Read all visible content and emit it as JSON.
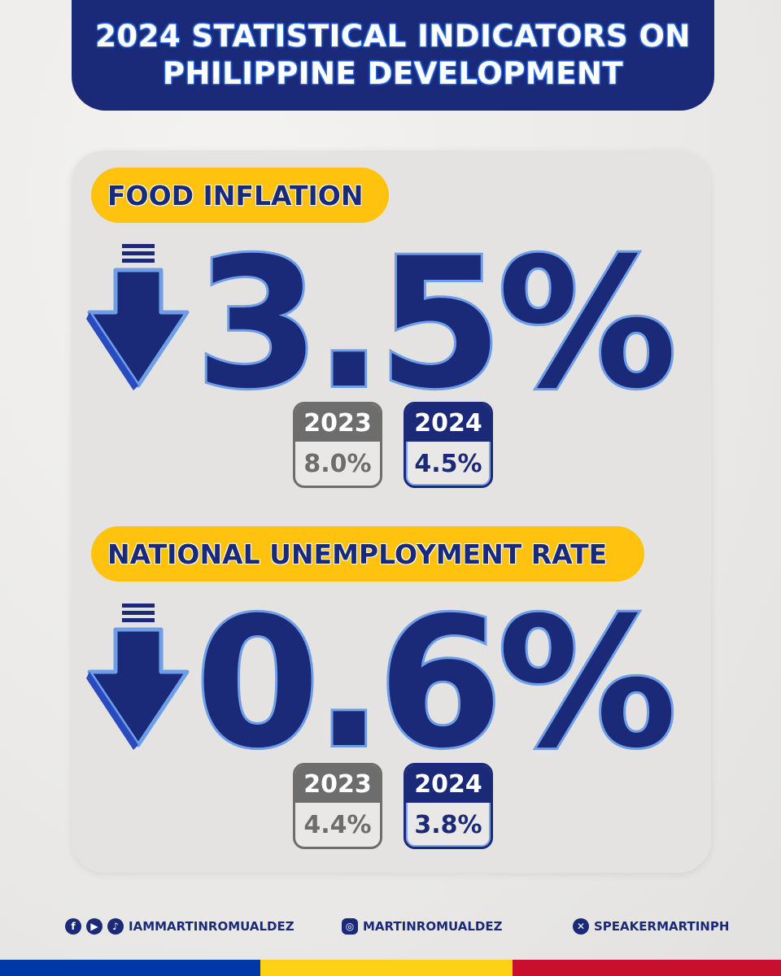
{
  "header": {
    "line1": "2024 STATISTICAL INDICATORS ON",
    "line2": "PHILIPPINE DEVELOPMENT"
  },
  "indicators": [
    {
      "label": "FOOD INFLATION",
      "change": "3.5%",
      "direction": "down-arrow-icon",
      "year_a": "2023",
      "value_a": "8.0%",
      "year_b": "2024",
      "value_b": "4.5%"
    },
    {
      "label": "NATIONAL UNEMPLOYMENT RATE",
      "change": "0.6%",
      "direction": "down-arrow-icon",
      "year_a": "2023",
      "value_a": "4.4%",
      "year_b": "2024",
      "value_b": "3.8%"
    }
  ],
  "footer": {
    "handle_1": "IAMMARTINROMUALDEZ",
    "handle_2": "MARTINROMUALDEZ",
    "handle_3": "SPEAKERMARTINPH",
    "icons_1": [
      "facebook-icon",
      "youtube-icon",
      "tiktok-icon"
    ],
    "icon_2": "instagram-icon",
    "icon_3": "x-icon"
  },
  "colors": {
    "navy": "#1a2a78",
    "yellow": "#ffc20e",
    "light_blue": "#6f9ee8",
    "gray": "#6d6d6d",
    "red": "#c8102e",
    "blue": "#0038a8"
  }
}
